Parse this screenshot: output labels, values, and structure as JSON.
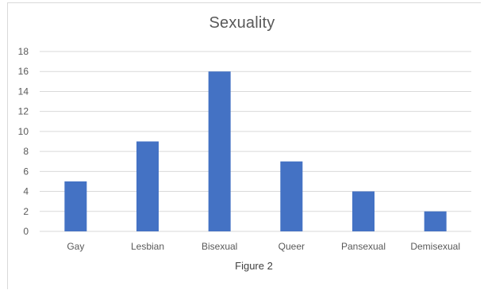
{
  "chart_data": {
    "type": "bar",
    "title": "Sexuality",
    "xlabel": "Figure 2",
    "ylabel": "",
    "categories": [
      "Gay",
      "Lesbian",
      "Bisexual",
      "Queer",
      "Pansexual",
      "Demisexual"
    ],
    "values": [
      5,
      9,
      16,
      7,
      4,
      2
    ],
    "ylim": [
      0,
      18
    ],
    "yticks": [
      "0",
      "2",
      "4",
      "6",
      "8",
      "10",
      "12",
      "14",
      "16",
      "18"
    ],
    "grid": true,
    "legend": "none",
    "bar_color": "#4472C4",
    "gridline_color": "#D9D9D9"
  }
}
